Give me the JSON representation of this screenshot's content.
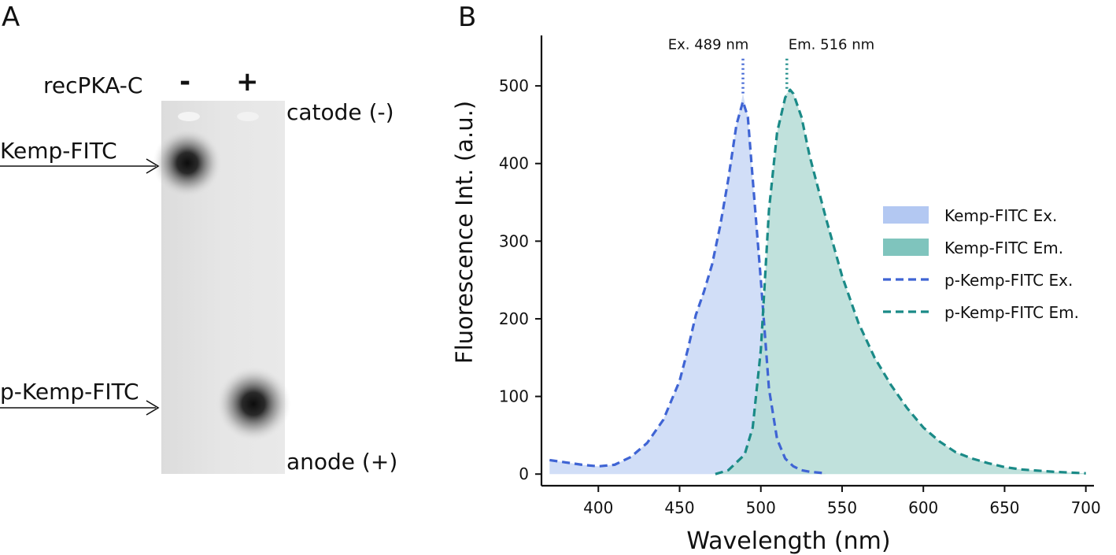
{
  "panel_a": {
    "letter": "A",
    "header_label": "recPKA-C",
    "lane_minus": "-",
    "lane_plus": "+",
    "catode": "catode (-)",
    "anode": "anode (+)",
    "band_upper": "Kemp-FITC",
    "band_lower": "p-Kemp-FITC"
  },
  "panel_b": {
    "letter": "B"
  },
  "chart_data": {
    "type": "area",
    "title": "",
    "xlabel": "Wavelength (nm)",
    "ylabel": "Fluorescence Int. (a.u.)",
    "xlim": [
      365,
      705
    ],
    "ylim": [
      -15,
      565
    ],
    "xticks": [
      400,
      450,
      500,
      550,
      600,
      650,
      700
    ],
    "yticks": [
      0,
      100,
      200,
      300,
      400,
      500
    ],
    "grid": false,
    "legend_position": "right",
    "colors": {
      "ex_fill": "#cfdcf7",
      "em_fill": "#b5dcd6",
      "ex_line": "#3f64d4",
      "em_line": "#1a8a87",
      "ex_legend": "#b3c8f2",
      "em_legend": "#7fc4bd"
    },
    "annotations": [
      {
        "text": "Ex. 489 nm",
        "x": 489,
        "y_top": 535,
        "y_bottom": 490
      },
      {
        "text": "Em. 516 nm",
        "x": 516,
        "y_top": 535,
        "y_bottom": 495
      }
    ],
    "series": [
      {
        "name": "Kemp-FITC Ex.",
        "style": "fill",
        "x": [
          370,
          380,
          390,
          400,
          410,
          420,
          430,
          440,
          450,
          455,
          460,
          465,
          470,
          475,
          480,
          485,
          489,
          492,
          495,
          500,
          505,
          510,
          515,
          520,
          525,
          530,
          535,
          540
        ],
        "y": [
          18,
          15,
          12,
          10,
          12,
          22,
          40,
          70,
          120,
          160,
          205,
          235,
          270,
          320,
          380,
          450,
          490,
          460,
          380,
          250,
          110,
          45,
          20,
          10,
          5,
          3,
          2,
          1
        ]
      },
      {
        "name": "Kemp-FITC Em.",
        "style": "fill",
        "x": [
          472,
          480,
          490,
          495,
          500,
          505,
          510,
          515,
          518,
          520,
          525,
          530,
          540,
          550,
          560,
          570,
          580,
          590,
          600,
          610,
          620,
          630,
          640,
          650,
          660,
          680,
          700
        ],
        "y": [
          0,
          5,
          25,
          60,
          160,
          340,
          440,
          488,
          495,
          490,
          460,
          410,
          330,
          255,
          195,
          150,
          115,
          85,
          60,
          42,
          28,
          20,
          14,
          9,
          6,
          3,
          1
        ]
      },
      {
        "name": "p-Kemp-FITC Ex.",
        "style": "dashed",
        "x": [
          370,
          380,
          390,
          400,
          410,
          420,
          430,
          440,
          450,
          455,
          460,
          465,
          470,
          475,
          480,
          485,
          489,
          492,
          495,
          500,
          505,
          510,
          515,
          520,
          525,
          530,
          535,
          540
        ],
        "y": [
          18,
          15,
          12,
          10,
          12,
          22,
          40,
          70,
          120,
          160,
          205,
          235,
          270,
          320,
          380,
          450,
          480,
          460,
          380,
          250,
          110,
          45,
          20,
          10,
          5,
          3,
          2,
          1
        ]
      },
      {
        "name": "p-Kemp-FITC Em.",
        "style": "dashed",
        "x": [
          472,
          480,
          490,
          495,
          500,
          505,
          510,
          515,
          518,
          520,
          525,
          530,
          540,
          550,
          560,
          570,
          580,
          590,
          600,
          610,
          620,
          630,
          640,
          650,
          660,
          680,
          700
        ],
        "y": [
          0,
          5,
          25,
          60,
          160,
          340,
          440,
          485,
          495,
          490,
          460,
          410,
          330,
          255,
          195,
          150,
          115,
          85,
          60,
          42,
          28,
          20,
          14,
          9,
          6,
          3,
          1
        ]
      }
    ]
  }
}
